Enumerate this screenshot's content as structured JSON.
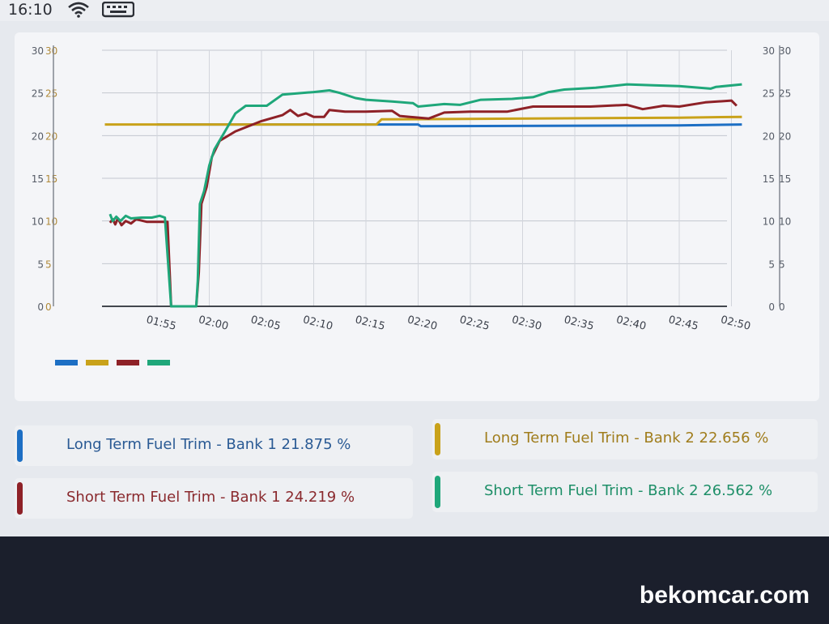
{
  "status": {
    "time": "16:10"
  },
  "chart_data": {
    "type": "line",
    "x_labels": [
      "01:55",
      "02:00",
      "02:05",
      "02:10",
      "02:15",
      "02:20",
      "02:25",
      "02:30",
      "02:35",
      "02:40",
      "02:45",
      "02:50"
    ],
    "y_ticks": [
      0,
      5,
      10,
      15,
      20,
      25,
      30
    ],
    "ylim": [
      0,
      30
    ],
    "grid": true,
    "series": [
      {
        "color": "#1d6fc4",
        "points": [
          [
            0,
            21.3
          ],
          [
            0.64,
            21.3
          ],
          [
            1.6,
            21.3
          ],
          [
            4.2,
            21.3
          ],
          [
            5.0,
            21.3
          ],
          [
            5.05,
            21.1
          ],
          [
            10,
            21.2
          ],
          [
            11.2,
            21.3
          ]
        ]
      },
      {
        "color": "#c9a21a",
        "points": [
          [
            -1,
            21.3
          ],
          [
            4.2,
            21.3
          ],
          [
            4.3,
            21.9
          ],
          [
            10,
            22.1
          ],
          [
            11.2,
            22.2
          ]
        ]
      },
      {
        "color": "#8e2127",
        "points": [
          [
            -0.9,
            9.8
          ],
          [
            -0.85,
            10.2
          ],
          [
            -0.8,
            9.6
          ],
          [
            -0.75,
            10.3
          ],
          [
            -0.68,
            9.5
          ],
          [
            -0.6,
            10.0
          ],
          [
            -0.5,
            9.7
          ],
          [
            -0.4,
            10.2
          ],
          [
            -0.2,
            9.9
          ],
          [
            0.05,
            9.9
          ],
          [
            0.2,
            9.9
          ],
          [
            0.27,
            0
          ],
          [
            0.75,
            0
          ],
          [
            0.8,
            4.0
          ],
          [
            0.85,
            12.0
          ],
          [
            0.95,
            14.0
          ],
          [
            1.05,
            17.5
          ],
          [
            1.2,
            19.4
          ],
          [
            1.5,
            20.5
          ],
          [
            2.0,
            21.7
          ],
          [
            2.4,
            22.4
          ],
          [
            2.55,
            23.0
          ],
          [
            2.7,
            22.3
          ],
          [
            2.85,
            22.6
          ],
          [
            3.0,
            22.2
          ],
          [
            3.2,
            22.2
          ],
          [
            3.3,
            23.0
          ],
          [
            3.6,
            22.8
          ],
          [
            4.0,
            22.8
          ],
          [
            4.5,
            22.9
          ],
          [
            4.65,
            22.3
          ],
          [
            5.2,
            22.0
          ],
          [
            5.5,
            22.7
          ],
          [
            6.0,
            22.8
          ],
          [
            6.7,
            22.8
          ],
          [
            7.2,
            23.4
          ],
          [
            8.3,
            23.4
          ],
          [
            9.0,
            23.6
          ],
          [
            9.3,
            23.1
          ],
          [
            9.7,
            23.5
          ],
          [
            10.0,
            23.4
          ],
          [
            10.5,
            23.9
          ],
          [
            11.0,
            24.1
          ],
          [
            11.1,
            23.5
          ]
        ]
      },
      {
        "color": "#1fa77a",
        "points": [
          [
            -0.9,
            10.8
          ],
          [
            -0.85,
            10.0
          ],
          [
            -0.78,
            10.5
          ],
          [
            -0.7,
            10.0
          ],
          [
            -0.6,
            10.6
          ],
          [
            -0.5,
            10.3
          ],
          [
            -0.3,
            10.4
          ],
          [
            -0.1,
            10.4
          ],
          [
            0.05,
            10.6
          ],
          [
            0.15,
            10.4
          ],
          [
            0.27,
            0
          ],
          [
            0.75,
            0
          ],
          [
            0.78,
            3.0
          ],
          [
            0.82,
            12.0
          ],
          [
            0.9,
            13.5
          ],
          [
            1.0,
            16.5
          ],
          [
            1.1,
            18.4
          ],
          [
            1.3,
            20.5
          ],
          [
            1.5,
            22.6
          ],
          [
            1.7,
            23.5
          ],
          [
            2.1,
            23.5
          ],
          [
            2.4,
            24.8
          ],
          [
            3.0,
            25.1
          ],
          [
            3.3,
            25.3
          ],
          [
            3.5,
            25.0
          ],
          [
            3.8,
            24.4
          ],
          [
            4.0,
            24.2
          ],
          [
            4.5,
            24.0
          ],
          [
            4.9,
            23.8
          ],
          [
            5.0,
            23.4
          ],
          [
            5.5,
            23.7
          ],
          [
            5.8,
            23.6
          ],
          [
            6.2,
            24.2
          ],
          [
            6.8,
            24.3
          ],
          [
            7.2,
            24.5
          ],
          [
            7.5,
            25.1
          ],
          [
            7.8,
            25.4
          ],
          [
            8.4,
            25.6
          ],
          [
            9.0,
            26.0
          ],
          [
            9.5,
            25.9
          ],
          [
            10.0,
            25.8
          ],
          [
            10.6,
            25.5
          ],
          [
            10.7,
            25.7
          ],
          [
            11.2,
            26.0
          ]
        ]
      }
    ]
  },
  "legend": [
    {
      "label": "Long Term Fuel Trim - Bank 1 21.875 %",
      "color": "#1d6fc4",
      "text_color": "#2a5a94"
    },
    {
      "label": "Long Term Fuel Trim - Bank 2 22.656 %",
      "color": "#c9a21a",
      "text_color": "#a07d1c"
    },
    {
      "label": "Short Term Fuel Trim - Bank 1 24.219 %",
      "color": "#8e2127",
      "text_color": "#8a2a2e"
    },
    {
      "label": "Short Term Fuel Trim - Bank 2 26.562 %",
      "color": "#1fa77a",
      "text_color": "#1e8f68"
    }
  ],
  "watermark": "bekomcar.com"
}
